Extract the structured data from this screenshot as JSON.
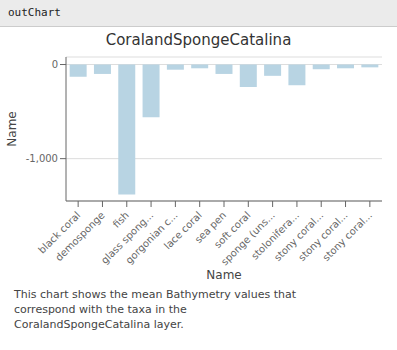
{
  "chart_data": {
    "type": "bar",
    "title": "CoralandSpongeCatalina",
    "xlabel": "Name",
    "ylabel": "Name",
    "categories": [
      "black coral",
      "demosponge",
      "fish",
      "glass spong...",
      "gorgonian c...",
      "lace coral",
      "sea pen",
      "soft coral",
      "sponge (uns...",
      "stolonifera...",
      "stony coral...",
      "stony coral...",
      "stony coral..."
    ],
    "values": [
      -130,
      -100,
      -1380,
      -560,
      -55,
      -40,
      -100,
      -240,
      -120,
      -220,
      -50,
      -40,
      -30
    ],
    "color": "#b8d4e3",
    "ylim": [
      -1450,
      80
    ],
    "yticks": [
      0,
      {
        "value": -1000,
        "label": "-1,000"
      }
    ],
    "grid": true,
    "annotations": [
      "outChart",
      "This chart shows the mean Bathymetry values that",
      "correspond with the taxa in the",
      "CoralandSpongeCatalina layer."
    ]
  }
}
